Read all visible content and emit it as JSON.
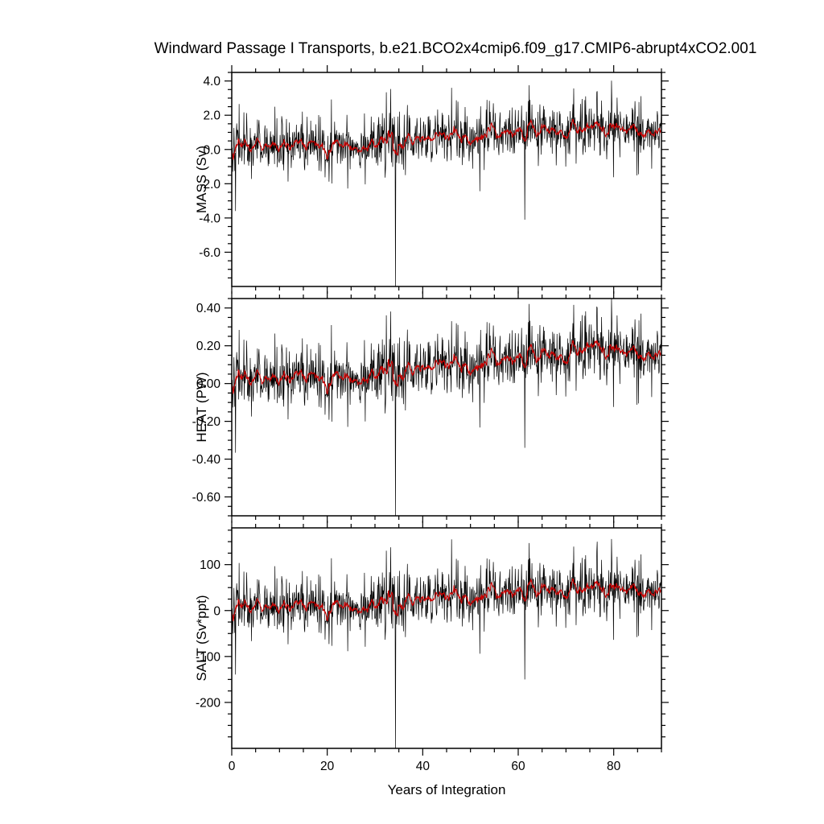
{
  "chart_data": {
    "type": "line",
    "title": "Windward Passage I Transports, b.e21.BCO2x4cmip6.f09_g17.CMIP6-abrupt4xCO2.001",
    "xlabel": "Years of Integration",
    "x_range": [
      0,
      90
    ],
    "x_major_ticks": [
      0,
      20,
      40,
      60,
      80
    ],
    "x_major_tick_labels": [
      "0",
      "20",
      "40",
      "60",
      "80"
    ],
    "x_minor_step": 5,
    "samples_per_year": 12,
    "noise_seed": 42,
    "grid": false,
    "legend": "none",
    "style": {
      "monthly_line_color": "#000000",
      "annual_mean_line_color": "#cc0000",
      "frame_color": "#000000",
      "background": "#ffffff"
    },
    "series_meaning": {
      "black": "monthly transport",
      "red": "annual running mean"
    },
    "panels": [
      {
        "ylabel": "MASS (Sv)",
        "ylim": [
          -8.0,
          4.5
        ],
        "yticks": [
          4.0,
          2.0,
          0.0,
          -2.0,
          -4.0,
          -6.0
        ],
        "ytick_labels": [
          "4.0",
          "2.0",
          "0.0",
          "-2.0",
          "-4.0",
          "-6.0"
        ],
        "y_minor_step": 0.5,
        "trend_years": [
          0,
          5,
          10,
          15,
          20,
          25,
          30,
          35,
          40,
          45,
          50,
          55,
          60,
          65,
          70,
          75,
          80,
          85,
          90
        ],
        "trend_values": [
          0.3,
          0.25,
          0.15,
          0.2,
          0.25,
          0.3,
          0.35,
          0.45,
          0.6,
          0.75,
          0.7,
          0.8,
          0.9,
          1.0,
          1.1,
          1.3,
          1.2,
          1.0,
          1.1
        ],
        "noise_std": 0.72,
        "spikes": [
          {
            "year": 34.25,
            "value": -8.5
          },
          {
            "year": 61.3,
            "value": -4.1
          },
          {
            "year": 46.0,
            "value": 3.6
          },
          {
            "year": 76.5,
            "value": 3.4
          }
        ]
      },
      {
        "ylabel": "HEAT (PW)",
        "ylim": [
          -0.7,
          0.45
        ],
        "yticks": [
          0.4,
          0.2,
          0.0,
          -0.2,
          -0.4,
          -0.6
        ],
        "ytick_labels": [
          "0.40",
          "0.20",
          "0.00",
          "-0.20",
          "-0.40",
          "-0.60"
        ],
        "y_minor_step": 0.05,
        "trend_years": [
          0,
          5,
          10,
          15,
          20,
          25,
          30,
          35,
          40,
          45,
          50,
          55,
          60,
          65,
          70,
          75,
          80,
          85,
          90
        ],
        "trend_values": [
          0.04,
          0.03,
          0.02,
          0.03,
          0.03,
          0.04,
          0.05,
          0.06,
          0.08,
          0.1,
          0.09,
          0.11,
          0.12,
          0.14,
          0.15,
          0.2,
          0.17,
          0.15,
          0.16
        ],
        "noise_std": 0.075,
        "spikes": [
          {
            "year": 34.25,
            "value": -0.78
          },
          {
            "year": 61.3,
            "value": -0.34
          },
          {
            "year": 46.0,
            "value": 0.33
          },
          {
            "year": 76.5,
            "value": 0.4
          }
        ]
      },
      {
        "ylabel": "SALT (Sv*ppt)",
        "ylim": [
          -300,
          180
        ],
        "yticks": [
          100,
          0,
          -100,
          -200
        ],
        "ytick_labels": [
          "100",
          "0",
          "-100",
          "-200"
        ],
        "y_minor_step": 25,
        "trend_years": [
          0,
          5,
          10,
          15,
          20,
          25,
          30,
          35,
          40,
          45,
          50,
          55,
          60,
          65,
          70,
          75,
          80,
          85,
          90
        ],
        "trend_values": [
          12,
          10,
          5,
          8,
          10,
          12,
          14,
          18,
          24,
          30,
          28,
          32,
          36,
          40,
          44,
          50,
          46,
          40,
          44
        ],
        "noise_std": 28,
        "spikes": [
          {
            "year": 34.25,
            "value": -320
          },
          {
            "year": 61.3,
            "value": -150
          },
          {
            "year": 46.0,
            "value": 155
          },
          {
            "year": 76.5,
            "value": 150
          }
        ]
      }
    ]
  }
}
